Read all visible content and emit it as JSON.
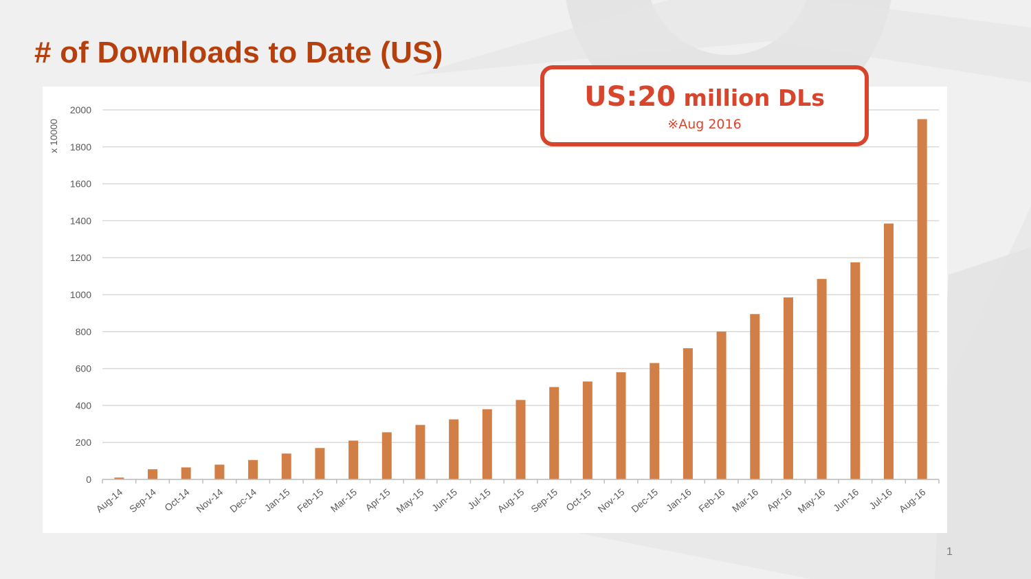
{
  "slide": {
    "title": "# of Downloads to Date (US)",
    "page_number": "1",
    "callout": {
      "prefix": "US:",
      "number": "20",
      "suffix": " million DLs",
      "note": "※Aug 2016"
    }
  },
  "colors": {
    "title": "#b5400d",
    "bar": "#d27f47",
    "callout": "#d8452d",
    "grid": "#d9d9d9",
    "axis_text": "#595959"
  },
  "chart_data": {
    "type": "bar",
    "title": "",
    "xlabel": "",
    "ylabel": "x 10000",
    "ylim": [
      0,
      2000
    ],
    "yticks": [
      0,
      200,
      400,
      600,
      800,
      1000,
      1200,
      1400,
      1600,
      1800,
      2000
    ],
    "grid": true,
    "categories": [
      "Aug-14",
      "Sep-14",
      "Oct-14",
      "Nov-14",
      "Dec-14",
      "Jan-15",
      "Feb-15",
      "Mar-15",
      "Apr-15",
      "May-15",
      "Jun-15",
      "Jul-15",
      "Aug-15",
      "Sep-15",
      "Oct-15",
      "Nov-15",
      "Dec-15",
      "Jan-16",
      "Feb-16",
      "Mar-16",
      "Apr-16",
      "May-16",
      "Jun-16",
      "Jul-16",
      "Aug-16"
    ],
    "values": [
      10,
      55,
      65,
      80,
      105,
      140,
      170,
      210,
      255,
      295,
      325,
      380,
      430,
      500,
      530,
      580,
      630,
      710,
      800,
      895,
      985,
      1085,
      1175,
      1385,
      1950
    ]
  }
}
